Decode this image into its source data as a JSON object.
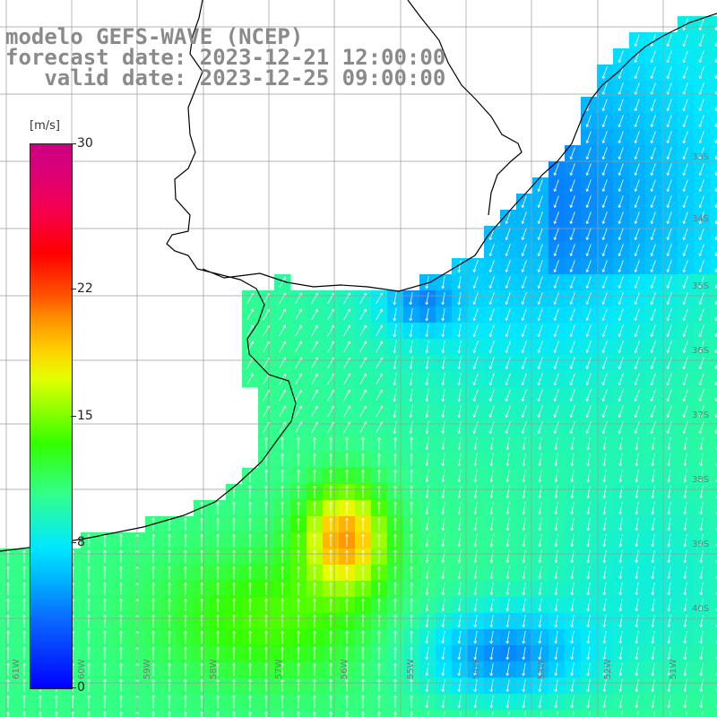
{
  "header": {
    "model": "modelo GEFS-WAVE (NCEP)",
    "forecast": "forecast date: 2023-12-21 12:00:00",
    "valid": "   valid date: 2023-12-25 09:00:00"
  },
  "colorbar": {
    "unit": "[m/s]",
    "ticks": [
      {
        "label": "30",
        "value": 30
      },
      {
        "label": "22",
        "value": 22
      },
      {
        "label": "15",
        "value": 15
      },
      {
        "label": "8",
        "value": 8
      },
      {
        "label": "0",
        "value": 0
      }
    ],
    "min": 0,
    "max": 30
  },
  "lon_labels": [
    "61W",
    "60W",
    "59W",
    "58W",
    "57W",
    "56W",
    "55W",
    "54W",
    "53W",
    "52W",
    "51W"
  ],
  "lat_labels": [
    "33S",
    "34S",
    "35S",
    "36S",
    "37S",
    "38S",
    "39S",
    "40S"
  ],
  "colors": {
    "land": "#ffffff",
    "coast": "#000000",
    "grid": "#9a9a9a",
    "arrow": "#ffffff",
    "title": "#8a8a8a"
  }
}
